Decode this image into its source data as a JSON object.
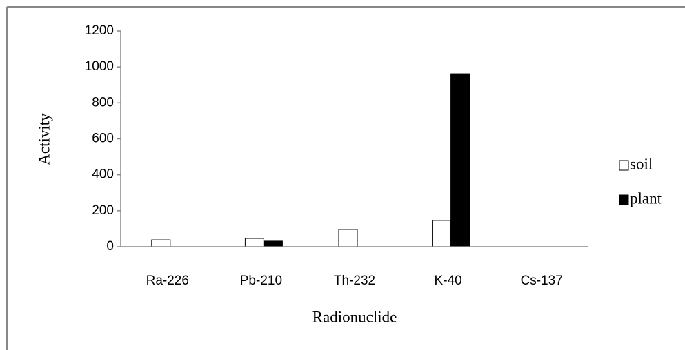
{
  "chart_data": {
    "type": "bar",
    "xlabel": "Radionuclide",
    "ylabel": "Activity",
    "categories": [
      "Ra-226",
      "Pb-210",
      "Th-232",
      "K-40",
      "Cs-137"
    ],
    "series": [
      {
        "name": "soil",
        "color": "#ffffff",
        "values": [
          38,
          46,
          96,
          146,
          0
        ]
      },
      {
        "name": "plant",
        "color": "#000000",
        "values": [
          0,
          31,
          0,
          962,
          0
        ]
      }
    ],
    "ylim": [
      0,
      1200
    ],
    "yticks": [
      0,
      200,
      400,
      600,
      800,
      1000,
      1200
    ],
    "grid": false,
    "legend": "right"
  }
}
